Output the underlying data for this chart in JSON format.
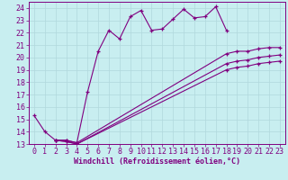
{
  "xlabel": "Windchill (Refroidissement éolien,°C)",
  "bg_color": "#c8eef0",
  "grid_color": "#b0d8dc",
  "line_color": "#800080",
  "xlim": [
    -0.5,
    23.5
  ],
  "ylim": [
    13,
    24.5
  ],
  "xticks": [
    0,
    1,
    2,
    3,
    4,
    5,
    6,
    7,
    8,
    9,
    10,
    11,
    12,
    13,
    14,
    15,
    16,
    17,
    18,
    19,
    20,
    21,
    22,
    23
  ],
  "yticks": [
    13,
    14,
    15,
    16,
    17,
    18,
    19,
    20,
    21,
    22,
    23,
    24
  ],
  "lines": [
    {
      "x": [
        0,
        1,
        2,
        3,
        4,
        4,
        5,
        6,
        7,
        8,
        9,
        10,
        11,
        12,
        13,
        14,
        15,
        16,
        17,
        18
      ],
      "y": [
        15.3,
        14.0,
        13.3,
        13.3,
        13.1,
        13.1,
        17.2,
        20.5,
        22.2,
        21.5,
        23.3,
        23.8,
        22.2,
        22.3,
        23.1,
        23.9,
        23.2,
        23.3,
        24.1,
        22.2
      ]
    },
    {
      "x": [
        2,
        3,
        4,
        18,
        19,
        20,
        21,
        22,
        23
      ],
      "y": [
        13.3,
        13.3,
        13.1,
        20.3,
        20.5,
        20.5,
        20.7,
        20.8,
        20.8
      ]
    },
    {
      "x": [
        2,
        3,
        4,
        18,
        19,
        20,
        21,
        22,
        23
      ],
      "y": [
        13.3,
        13.2,
        13.0,
        19.5,
        19.7,
        19.8,
        20.0,
        20.1,
        20.2
      ]
    },
    {
      "x": [
        2,
        3,
        4,
        18,
        19,
        20,
        21,
        22,
        23
      ],
      "y": [
        13.3,
        13.2,
        13.0,
        19.0,
        19.2,
        19.3,
        19.5,
        19.6,
        19.7
      ]
    }
  ],
  "tick_fontsize": 6,
  "xlabel_fontsize": 6
}
